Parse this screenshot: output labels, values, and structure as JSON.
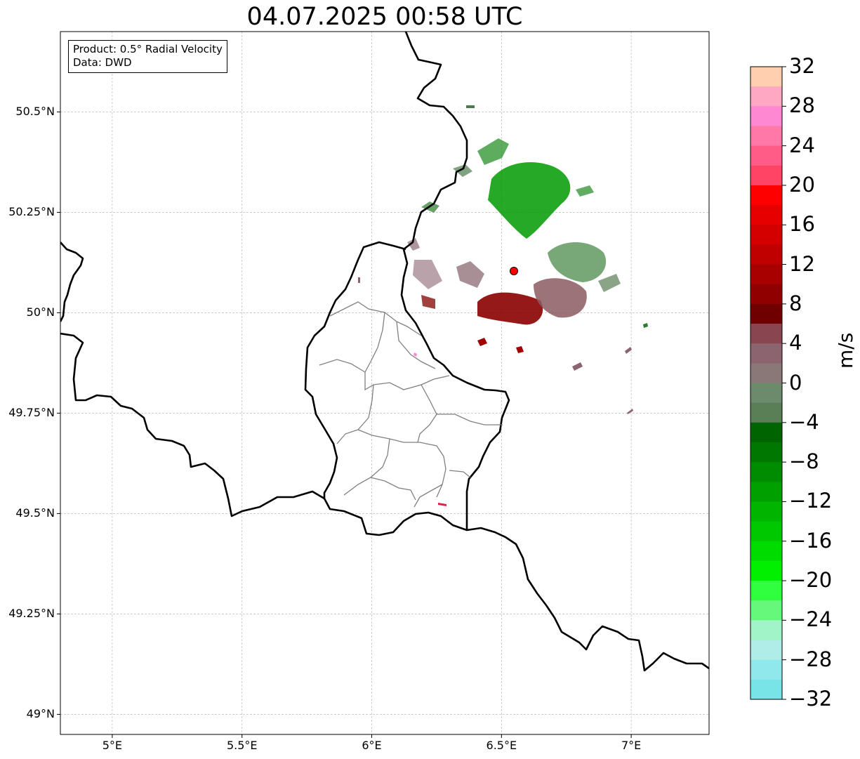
{
  "title": "04.07.2025 00:58 UTC",
  "infobox": {
    "product": "Product: 0.5° Radial Velocity",
    "data": "Data: DWD"
  },
  "map": {
    "lon_range": [
      4.8,
      7.3
    ],
    "lat_range": [
      48.95,
      50.7
    ],
    "x_ticks": [
      {
        "lon": 5.0,
        "label": "5°E"
      },
      {
        "lon": 5.5,
        "label": "5.5°E"
      },
      {
        "lon": 6.0,
        "label": "6°E"
      },
      {
        "lon": 6.5,
        "label": "6.5°E"
      },
      {
        "lon": 7.0,
        "label": "7°E"
      }
    ],
    "y_ticks": [
      {
        "lat": 50.5,
        "label": "50.5°N"
      },
      {
        "lat": 50.25,
        "label": "50.25°N"
      },
      {
        "lat": 50.0,
        "label": "50°N"
      },
      {
        "lat": 49.75,
        "label": "49.75°N"
      },
      {
        "lat": 49.5,
        "label": "49.5°N"
      },
      {
        "lat": 49.25,
        "label": "49.25°N"
      },
      {
        "lat": 49.0,
        "label": "49°N"
      }
    ],
    "radar_site": {
      "lon": 6.55,
      "lat": 50.11,
      "color": "#ff0000"
    },
    "border_color": "#000000",
    "district_color": "#808080"
  },
  "colorbar": {
    "unit": "m/s",
    "min": -32,
    "max": 32,
    "tick_labels": [
      "32",
      "28",
      "24",
      "20",
      "16",
      "12",
      "8",
      "4",
      "0",
      "−4",
      "−8",
      "−12",
      "−16",
      "−20",
      "−24",
      "−28",
      "−32"
    ],
    "tick_values": [
      32,
      28,
      24,
      20,
      16,
      12,
      8,
      4,
      0,
      -4,
      -8,
      -12,
      -16,
      -20,
      -24,
      -28,
      -32
    ],
    "colors_top_to_bottom": [
      "#ffcfb0",
      "#ffa8c4",
      "#ff88d2",
      "#ff78a8",
      "#ff5c88",
      "#ff4466",
      "#ff0000",
      "#e60000",
      "#d40000",
      "#c00000",
      "#a80000",
      "#900000",
      "#700000",
      "#8a4650",
      "#8c6470",
      "#8a7878",
      "#6c8a6c",
      "#5a7e56",
      "#006400",
      "#007800",
      "#008c00",
      "#00a000",
      "#00b400",
      "#00c800",
      "#00dc00",
      "#00f000",
      "#30ff40",
      "#66f87a",
      "#a0f4c8",
      "#b0ece8",
      "#90e8ec",
      "#78e4e8"
    ]
  }
}
